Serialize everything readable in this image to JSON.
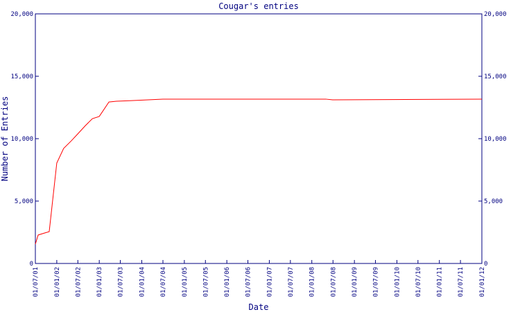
{
  "chart_data": {
    "type": "line",
    "title": "Cougar's entries",
    "x_label": "Date",
    "y_label": "Number of Entries",
    "xlim": [
      "2001-07-01",
      "2012-01-01"
    ],
    "xticks": [
      {
        "value": "2001-07-01",
        "label": "01/07/01"
      },
      {
        "value": "2002-01-01",
        "label": "01/01/02"
      },
      {
        "value": "2002-07-01",
        "label": "01/07/02"
      },
      {
        "value": "2003-01-01",
        "label": "01/01/03"
      },
      {
        "value": "2003-07-01",
        "label": "01/07/03"
      },
      {
        "value": "2004-01-01",
        "label": "01/01/04"
      },
      {
        "value": "2004-07-01",
        "label": "01/07/04"
      },
      {
        "value": "2005-01-01",
        "label": "01/01/05"
      },
      {
        "value": "2005-07-01",
        "label": "01/07/05"
      },
      {
        "value": "2006-01-01",
        "label": "01/01/06"
      },
      {
        "value": "2006-07-01",
        "label": "01/07/06"
      },
      {
        "value": "2007-01-01",
        "label": "01/01/07"
      },
      {
        "value": "2007-07-01",
        "label": "01/07/07"
      },
      {
        "value": "2008-01-01",
        "label": "01/01/08"
      },
      {
        "value": "2008-07-01",
        "label": "01/07/08"
      },
      {
        "value": "2009-01-01",
        "label": "01/01/09"
      },
      {
        "value": "2009-07-01",
        "label": "01/07/09"
      },
      {
        "value": "2010-01-01",
        "label": "01/01/10"
      },
      {
        "value": "2010-07-01",
        "label": "01/07/10"
      },
      {
        "value": "2011-01-01",
        "label": "01/01/11"
      },
      {
        "value": "2011-07-01",
        "label": "01/07/11"
      },
      {
        "value": "2012-01-01",
        "label": "01/01/12"
      }
    ],
    "ylim": [
      0,
      20000
    ],
    "yticks": [
      0,
      {
        "value": 5000,
        "label": "5,000"
      },
      {
        "value": 10000,
        "label": "10,000"
      },
      {
        "value": 15000,
        "label": "15,000"
      },
      {
        "value": 20000,
        "label": "20,000"
      }
    ],
    "grid": false,
    "x": [
      "2001-07-01",
      "2001-07-25",
      "2001-09-22",
      "2001-10-28",
      "2002-01-01",
      "2002-03-01",
      "2002-05-06",
      "2002-07-01",
      "2002-09-04",
      "2002-11-03",
      "2003-01-01",
      "2003-03-25",
      "2003-05-29",
      "2003-10-04",
      "2004-07-01",
      "2008-04-29",
      "2008-06-28",
      "2012-01-01"
    ],
    "series": [
      {
        "name": "entries",
        "color": "#ff0000",
        "values": [
          1550,
          2280,
          2450,
          2550,
          8050,
          9220,
          9830,
          10390,
          11050,
          11600,
          11780,
          12940,
          13000,
          13050,
          13170,
          13170,
          13110,
          13170
        ]
      }
    ],
    "axis_color": "#000080"
  }
}
